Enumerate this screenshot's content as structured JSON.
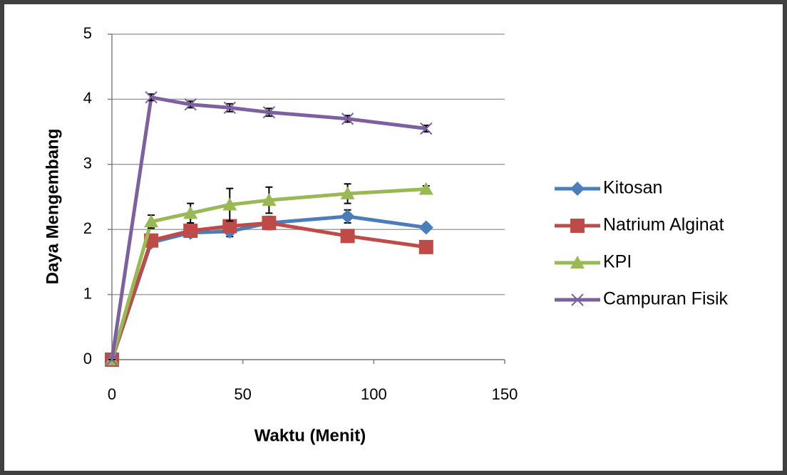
{
  "chart_data": {
    "type": "line",
    "x_label": "Waktu (Menit)",
    "y_label": "Daya Mengembang",
    "x": [
      0,
      15,
      30,
      45,
      60,
      90,
      120
    ],
    "series": [
      {
        "name": "Kitosan",
        "color": "#4a7ebb",
        "marker": "diamond",
        "values": [
          0,
          1.8,
          1.95,
          1.97,
          2.1,
          2.2,
          2.03
        ],
        "errors": [
          0,
          0.05,
          0.05,
          0.08,
          0.08,
          0.1,
          0.05
        ]
      },
      {
        "name": "Natrium Alginat",
        "color": "#be4b48",
        "marker": "square",
        "values": [
          0,
          1.83,
          1.98,
          2.05,
          2.1,
          1.9,
          1.73
        ],
        "errors": [
          0,
          0.05,
          0.05,
          0.05,
          0.1,
          0.08,
          0.05
        ]
      },
      {
        "name": "KPI",
        "color": "#98b954",
        "marker": "triangle",
        "values": [
          0,
          2.12,
          2.25,
          2.38,
          2.45,
          2.55,
          2.62
        ],
        "errors": [
          0,
          0.1,
          0.15,
          0.25,
          0.2,
          0.15,
          0.05
        ]
      },
      {
        "name": "Campuran Fisik",
        "color": "#7d60a0",
        "marker": "x",
        "values": [
          0,
          4.03,
          3.92,
          3.87,
          3.8,
          3.7,
          3.55
        ],
        "errors": [
          0,
          0.05,
          0.05,
          0.06,
          0.06,
          0.05,
          0.05
        ]
      }
    ],
    "xlim": [
      0,
      150
    ],
    "xticks": [
      0,
      50,
      100,
      150
    ],
    "ylim": [
      0,
      5
    ],
    "yticks": [
      0,
      1,
      2,
      3,
      4,
      5
    ],
    "grid": true,
    "legend": "right"
  }
}
